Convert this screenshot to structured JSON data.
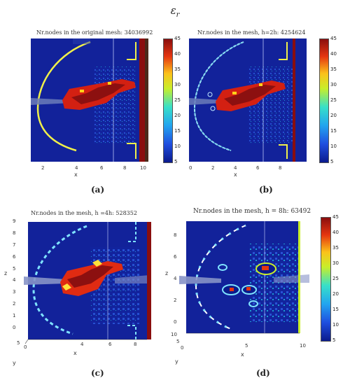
{
  "figure": {
    "title": "ε",
    "title_sub": "r",
    "panels": [
      {
        "id": "a",
        "title": "Nr.nodes in the original mesh: 34036992",
        "caption": "(a)",
        "x_ticks": [
          "2",
          "4",
          "6",
          "8",
          "10"
        ],
        "x_label": "x",
        "colorbar_ticks": [
          "45",
          "40",
          "35",
          "30",
          "25",
          "20",
          "15",
          "10",
          "5"
        ]
      },
      {
        "id": "b",
        "title": "Nr.nodes in the mesh, h=2h: 4254624",
        "caption": "(b)",
        "x_ticks": [
          "0",
          "2",
          "4",
          "6",
          "8"
        ],
        "x_label": "x",
        "colorbar_ticks": [
          "45",
          "40",
          "35",
          "30",
          "25",
          "20",
          "15",
          "10",
          "5"
        ]
      },
      {
        "id": "c",
        "title": "Nr.nodes in the mesh, h =4h: 528352",
        "caption": "(c)",
        "x_ticks": [
          "4",
          "6",
          "8"
        ],
        "x_label": "x",
        "y_label": "y",
        "y_ticks": [
          "5",
          "0"
        ],
        "z_label": "z",
        "z_ticks": [
          "9",
          "8",
          "7",
          "6",
          "5",
          "4",
          "3",
          "2",
          "1",
          "0"
        ]
      },
      {
        "id": "d",
        "title": "Nr.nodes in the mesh, h = 8h: 63492",
        "caption": "(d)",
        "x_ticks": [
          "5",
          "10"
        ],
        "x_label": "x",
        "y_label": "y",
        "y_ticks": [
          "10",
          "5",
          "0"
        ],
        "z_label": "z",
        "z_ticks": [
          "8",
          "6",
          "4",
          "2",
          "0"
        ],
        "colorbar_ticks": [
          "45",
          "40",
          "35",
          "30",
          "25",
          "20",
          "15",
          "10",
          "5"
        ]
      }
    ]
  }
}
